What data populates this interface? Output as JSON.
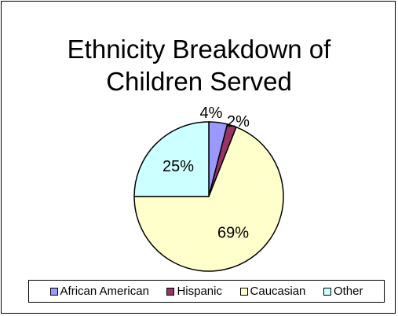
{
  "chart_data": {
    "type": "pie",
    "title_line1": "Ethnicity Breakdown of",
    "title_line2": "Children Served",
    "categories": [
      "African American",
      "Hispanic",
      "Caucasian",
      "Other"
    ],
    "values": [
      4,
      2,
      69,
      25
    ],
    "labels": [
      "4%",
      "2%",
      "69%",
      "25%"
    ],
    "colors": [
      "#9999FF",
      "#993366",
      "#FFFFCC",
      "#CCFFFF"
    ],
    "start_angle_deg": 0,
    "direction": "clockwise",
    "legend_position": "bottom"
  }
}
